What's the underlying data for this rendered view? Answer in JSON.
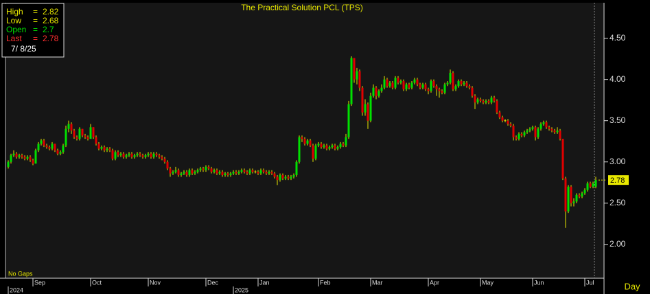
{
  "chart_data": {
    "type": "candlestick",
    "title": "The Practical Solution PCL (TPS)",
    "info": {
      "labels": [
        "High",
        "Low",
        "Open",
        "Last"
      ],
      "separator": "=",
      "fields": [
        1,
        2,
        0,
        3
      ],
      "colors": [
        "#e8e800",
        "#e8e800",
        "#00e000",
        "#ff3030"
      ],
      "date": "7/ 8/25"
    },
    "note": "No Gaps",
    "period": "Day",
    "up_color": "#00e000",
    "down_color": "#e00000",
    "wick_color": "#e8e800",
    "ylim": [
      1.59,
      4.93
    ],
    "yticks": [
      {
        "value": 2,
        "label": "2.00"
      },
      {
        "value": 2.5,
        "label": "2.50"
      },
      {
        "value": 3,
        "label": "3.00"
      },
      {
        "value": 3.5,
        "label": "3.50"
      },
      {
        "value": 4,
        "label": "4.00"
      },
      {
        "value": 4.5,
        "label": "4.50"
      }
    ],
    "xlim": [
      -1,
      217
    ],
    "xticks": [
      {
        "value": 9,
        "label": "Sep"
      },
      {
        "value": 30,
        "label": "Oct"
      },
      {
        "value": 51,
        "label": "Nov"
      },
      {
        "value": 72,
        "label": "Dec"
      },
      {
        "value": 91,
        "label": "Jan"
      },
      {
        "value": 113,
        "label": "Feb"
      },
      {
        "value": 132,
        "label": "Mar"
      },
      {
        "value": 153,
        "label": "Apr"
      },
      {
        "value": 172,
        "label": "May"
      },
      {
        "value": 191,
        "label": "Jun"
      },
      {
        "value": 210,
        "label": "Jul"
      }
    ],
    "year_ticks": [
      {
        "value": 9,
        "label": "2024"
      },
      {
        "value": 91,
        "label": "2025"
      }
    ],
    "candles": [
      [
        2.94,
        3.02,
        2.92,
        3.0
      ],
      [
        3.0,
        3.1,
        2.98,
        3.08
      ],
      [
        3.08,
        3.14,
        3.06,
        3.1
      ],
      [
        3.1,
        3.12,
        3.04,
        3.06
      ],
      [
        3.06,
        3.1,
        3.04,
        3.08
      ],
      [
        3.08,
        3.1,
        3.04,
        3.06
      ],
      [
        3.06,
        3.08,
        3.02,
        3.04
      ],
      [
        3.04,
        3.08,
        3.02,
        3.06
      ],
      [
        3.06,
        3.08,
        3.0,
        3.02
      ],
      [
        3.02,
        3.04,
        2.96,
        2.98
      ],
      [
        2.98,
        3.16,
        2.98,
        3.14
      ],
      [
        3.14,
        3.24,
        3.12,
        3.22
      ],
      [
        3.22,
        3.28,
        3.2,
        3.26
      ],
      [
        3.26,
        3.28,
        3.18,
        3.2
      ],
      [
        3.2,
        3.22,
        3.16,
        3.18
      ],
      [
        3.18,
        3.2,
        3.14,
        3.16
      ],
      [
        3.16,
        3.24,
        3.14,
        3.22
      ],
      [
        3.22,
        3.22,
        3.12,
        3.14
      ],
      [
        3.14,
        3.16,
        3.08,
        3.1
      ],
      [
        3.1,
        3.14,
        3.08,
        3.12
      ],
      [
        3.12,
        3.22,
        3.1,
        3.2
      ],
      [
        3.2,
        3.44,
        3.18,
        3.4
      ],
      [
        3.4,
        3.5,
        3.36,
        3.46
      ],
      [
        3.46,
        3.48,
        3.34,
        3.38
      ],
      [
        3.38,
        3.4,
        3.28,
        3.3
      ],
      [
        3.3,
        3.32,
        3.26,
        3.28
      ],
      [
        3.28,
        3.42,
        3.26,
        3.4
      ],
      [
        3.4,
        3.4,
        3.3,
        3.32
      ],
      [
        3.32,
        3.34,
        3.28,
        3.3
      ],
      [
        3.3,
        3.32,
        3.26,
        3.28
      ],
      [
        3.28,
        3.46,
        3.28,
        3.42
      ],
      [
        3.42,
        3.42,
        3.28,
        3.3
      ],
      [
        3.3,
        3.32,
        3.2,
        3.22
      ],
      [
        3.22,
        3.24,
        3.14,
        3.16
      ],
      [
        3.16,
        3.2,
        3.14,
        3.18
      ],
      [
        3.18,
        3.2,
        3.12,
        3.14
      ],
      [
        3.14,
        3.18,
        3.12,
        3.16
      ],
      [
        3.16,
        3.18,
        3.12,
        3.14
      ],
      [
        3.14,
        3.16,
        3.02,
        3.04
      ],
      [
        3.04,
        3.14,
        3.02,
        3.12
      ],
      [
        3.12,
        3.14,
        3.06,
        3.08
      ],
      [
        3.08,
        3.12,
        3.06,
        3.1
      ],
      [
        3.1,
        3.12,
        3.04,
        3.06
      ],
      [
        3.06,
        3.1,
        3.04,
        3.08
      ],
      [
        3.08,
        3.12,
        3.06,
        3.1
      ],
      [
        3.1,
        3.12,
        3.04,
        3.06
      ],
      [
        3.06,
        3.1,
        3.04,
        3.08
      ],
      [
        3.08,
        3.12,
        3.06,
        3.1
      ],
      [
        3.1,
        3.12,
        3.06,
        3.08
      ],
      [
        3.08,
        3.1,
        3.04,
        3.06
      ],
      [
        3.06,
        3.1,
        3.04,
        3.08
      ],
      [
        3.08,
        3.12,
        3.06,
        3.1
      ],
      [
        3.1,
        3.12,
        3.04,
        3.06
      ],
      [
        3.06,
        3.12,
        3.04,
        3.1
      ],
      [
        3.1,
        3.12,
        3.06,
        3.08
      ],
      [
        3.08,
        3.1,
        3.04,
        3.06
      ],
      [
        3.06,
        3.08,
        3.02,
        3.04
      ],
      [
        3.04,
        3.06,
        2.98,
        3.0
      ],
      [
        3.0,
        3.02,
        2.9,
        2.92
      ],
      [
        2.92,
        2.94,
        2.82,
        2.86
      ],
      [
        2.86,
        2.9,
        2.84,
        2.88
      ],
      [
        2.88,
        2.94,
        2.86,
        2.9
      ],
      [
        2.9,
        2.92,
        2.82,
        2.84
      ],
      [
        2.84,
        2.88,
        2.82,
        2.86
      ],
      [
        2.86,
        2.9,
        2.84,
        2.88
      ],
      [
        2.88,
        2.9,
        2.82,
        2.84
      ],
      [
        2.84,
        2.92,
        2.82,
        2.9
      ],
      [
        2.9,
        2.92,
        2.84,
        2.86
      ],
      [
        2.86,
        2.9,
        2.84,
        2.88
      ],
      [
        2.88,
        2.92,
        2.86,
        2.9
      ],
      [
        2.9,
        2.94,
        2.88,
        2.92
      ],
      [
        2.92,
        2.94,
        2.88,
        2.9
      ],
      [
        2.9,
        2.96,
        2.88,
        2.94
      ],
      [
        2.94,
        2.96,
        2.9,
        2.92
      ],
      [
        2.92,
        2.94,
        2.86,
        2.88
      ],
      [
        2.88,
        2.92,
        2.86,
        2.9
      ],
      [
        2.9,
        2.92,
        2.84,
        2.86
      ],
      [
        2.86,
        2.9,
        2.84,
        2.88
      ],
      [
        2.88,
        2.9,
        2.82,
        2.84
      ],
      [
        2.84,
        2.88,
        2.82,
        2.86
      ],
      [
        2.86,
        2.88,
        2.82,
        2.84
      ],
      [
        2.84,
        2.88,
        2.82,
        2.86
      ],
      [
        2.86,
        2.9,
        2.84,
        2.88
      ],
      [
        2.88,
        2.9,
        2.84,
        2.86
      ],
      [
        2.86,
        2.9,
        2.84,
        2.88
      ],
      [
        2.88,
        2.92,
        2.86,
        2.9
      ],
      [
        2.9,
        2.92,
        2.86,
        2.88
      ],
      [
        2.88,
        2.9,
        2.84,
        2.86
      ],
      [
        2.86,
        2.92,
        2.84,
        2.9
      ],
      [
        2.9,
        2.92,
        2.86,
        2.88
      ],
      [
        2.88,
        2.9,
        2.86,
        2.88
      ],
      [
        2.88,
        2.9,
        2.84,
        2.86
      ],
      [
        2.86,
        2.92,
        2.84,
        2.9
      ],
      [
        2.9,
        2.92,
        2.86,
        2.88
      ],
      [
        2.88,
        2.9,
        2.84,
        2.86
      ],
      [
        2.86,
        2.9,
        2.84,
        2.88
      ],
      [
        2.88,
        2.9,
        2.84,
        2.86
      ],
      [
        2.86,
        2.88,
        2.8,
        2.82
      ],
      [
        2.82,
        2.84,
        2.72,
        2.78
      ],
      [
        2.78,
        2.86,
        2.76,
        2.84
      ],
      [
        2.84,
        2.86,
        2.78,
        2.8
      ],
      [
        2.8,
        2.84,
        2.78,
        2.82
      ],
      [
        2.82,
        2.84,
        2.78,
        2.8
      ],
      [
        2.8,
        2.84,
        2.78,
        2.82
      ],
      [
        2.82,
        2.86,
        2.8,
        2.84
      ],
      [
        2.84,
        3.02,
        2.82,
        3.0
      ],
      [
        3.0,
        3.32,
        2.98,
        3.3
      ],
      [
        3.3,
        3.32,
        3.24,
        3.28
      ],
      [
        3.28,
        3.3,
        3.2,
        3.22
      ],
      [
        3.22,
        3.28,
        3.2,
        3.26
      ],
      [
        3.26,
        3.28,
        3.18,
        3.2
      ],
      [
        3.2,
        3.22,
        3.0,
        3.04
      ],
      [
        3.04,
        3.22,
        3.02,
        3.2
      ],
      [
        3.2,
        3.24,
        3.18,
        3.22
      ],
      [
        3.22,
        3.24,
        3.16,
        3.18
      ],
      [
        3.18,
        3.22,
        3.16,
        3.2
      ],
      [
        3.2,
        3.22,
        3.14,
        3.16
      ],
      [
        3.16,
        3.2,
        3.14,
        3.18
      ],
      [
        3.18,
        3.22,
        3.16,
        3.2
      ],
      [
        3.2,
        3.22,
        3.14,
        3.16
      ],
      [
        3.16,
        3.2,
        3.14,
        3.18
      ],
      [
        3.18,
        3.24,
        3.16,
        3.22
      ],
      [
        3.22,
        3.24,
        3.18,
        3.2
      ],
      [
        3.2,
        3.34,
        3.18,
        3.3
      ],
      [
        3.3,
        3.74,
        3.28,
        3.7
      ],
      [
        3.7,
        4.28,
        3.68,
        4.26
      ],
      [
        4.26,
        4.26,
        3.96,
        4.0
      ],
      [
        4.0,
        4.14,
        3.94,
        4.1
      ],
      [
        4.1,
        4.12,
        3.86,
        3.9
      ],
      [
        3.9,
        3.92,
        3.56,
        3.6
      ],
      [
        3.6,
        3.76,
        3.56,
        3.7
      ],
      [
        3.7,
        3.72,
        3.4,
        3.5
      ],
      [
        3.5,
        3.84,
        3.48,
        3.8
      ],
      [
        3.8,
        3.94,
        3.78,
        3.9
      ],
      [
        3.9,
        3.92,
        3.76,
        3.8
      ],
      [
        3.8,
        3.88,
        3.78,
        3.86
      ],
      [
        3.86,
        3.94,
        3.84,
        3.9
      ],
      [
        3.9,
        4.04,
        3.88,
        4.0
      ],
      [
        4.0,
        4.02,
        3.9,
        3.92
      ],
      [
        3.92,
        3.98,
        3.9,
        3.96
      ],
      [
        3.96,
        3.98,
        3.88,
        3.9
      ],
      [
        3.9,
        4.04,
        3.88,
        4.02
      ],
      [
        4.02,
        4.04,
        3.94,
        3.96
      ],
      [
        3.96,
        4.0,
        3.94,
        3.98
      ],
      [
        3.98,
        4.0,
        3.86,
        3.88
      ],
      [
        3.88,
        3.96,
        3.86,
        3.94
      ],
      [
        3.94,
        3.96,
        3.88,
        3.9
      ],
      [
        3.9,
        3.98,
        3.88,
        3.96
      ],
      [
        3.96,
        4.02,
        3.94,
        4.0
      ],
      [
        4.0,
        4.02,
        3.92,
        3.94
      ],
      [
        3.94,
        3.96,
        3.88,
        3.9
      ],
      [
        3.9,
        3.96,
        3.88,
        3.94
      ],
      [
        3.94,
        3.96,
        3.86,
        3.88
      ],
      [
        3.88,
        3.9,
        3.82,
        3.86
      ],
      [
        3.86,
        4.0,
        3.84,
        3.98
      ],
      [
        3.98,
        4.0,
        3.9,
        3.92
      ],
      [
        3.92,
        3.94,
        3.8,
        3.88
      ],
      [
        3.88,
        3.9,
        3.78,
        3.86
      ],
      [
        3.86,
        3.88,
        3.82,
        3.84
      ],
      [
        3.84,
        3.96,
        3.82,
        3.94
      ],
      [
        3.94,
        3.98,
        3.92,
        3.96
      ],
      [
        3.96,
        4.12,
        3.94,
        4.08
      ],
      [
        4.08,
        4.1,
        3.86,
        3.88
      ],
      [
        3.88,
        3.94,
        3.86,
        3.92
      ],
      [
        3.92,
        4.0,
        3.9,
        3.98
      ],
      [
        3.98,
        4.0,
        3.92,
        3.94
      ],
      [
        3.94,
        3.98,
        3.92,
        3.96
      ],
      [
        3.96,
        3.98,
        3.9,
        3.92
      ],
      [
        3.92,
        3.94,
        3.88,
        3.9
      ],
      [
        3.9,
        3.92,
        3.78,
        3.8
      ],
      [
        3.8,
        3.82,
        3.64,
        3.72
      ],
      [
        3.72,
        3.78,
        3.7,
        3.76
      ],
      [
        3.76,
        3.78,
        3.72,
        3.74
      ],
      [
        3.74,
        3.76,
        3.7,
        3.72
      ],
      [
        3.72,
        3.76,
        3.7,
        3.74
      ],
      [
        3.74,
        3.76,
        3.7,
        3.72
      ],
      [
        3.72,
        3.8,
        3.7,
        3.78
      ],
      [
        3.78,
        3.8,
        3.72,
        3.74
      ],
      [
        3.74,
        3.76,
        3.58,
        3.6
      ],
      [
        3.6,
        3.62,
        3.52,
        3.54
      ],
      [
        3.54,
        3.56,
        3.48,
        3.5
      ],
      [
        3.5,
        3.52,
        3.48,
        3.5
      ],
      [
        3.5,
        3.52,
        3.44,
        3.46
      ],
      [
        3.46,
        3.48,
        3.42,
        3.44
      ],
      [
        3.44,
        3.46,
        3.26,
        3.3
      ],
      [
        3.3,
        3.32,
        3.26,
        3.28
      ],
      [
        3.28,
        3.36,
        3.26,
        3.34
      ],
      [
        3.34,
        3.36,
        3.3,
        3.32
      ],
      [
        3.32,
        3.38,
        3.3,
        3.36
      ],
      [
        3.36,
        3.4,
        3.34,
        3.38
      ],
      [
        3.38,
        3.42,
        3.36,
        3.4
      ],
      [
        3.4,
        3.44,
        3.38,
        3.42
      ],
      [
        3.42,
        3.44,
        3.26,
        3.3
      ],
      [
        3.3,
        3.42,
        3.28,
        3.4
      ],
      [
        3.4,
        3.48,
        3.38,
        3.46
      ],
      [
        3.46,
        3.5,
        3.44,
        3.48
      ],
      [
        3.48,
        3.5,
        3.4,
        3.42
      ],
      [
        3.42,
        3.44,
        3.38,
        3.4
      ],
      [
        3.4,
        3.42,
        3.36,
        3.38
      ],
      [
        3.38,
        3.4,
        3.34,
        3.36
      ],
      [
        3.36,
        3.42,
        3.34,
        3.38
      ],
      [
        3.38,
        3.4,
        3.26,
        3.28
      ],
      [
        3.28,
        3.28,
        2.78,
        2.8
      ],
      [
        2.8,
        2.82,
        2.2,
        2.4
      ],
      [
        2.4,
        2.72,
        2.38,
        2.7
      ],
      [
        2.7,
        2.72,
        2.46,
        2.5
      ],
      [
        2.5,
        2.56,
        2.46,
        2.52
      ],
      [
        2.52,
        2.62,
        2.5,
        2.6
      ],
      [
        2.6,
        2.62,
        2.56,
        2.58
      ],
      [
        2.58,
        2.64,
        2.56,
        2.62
      ],
      [
        2.62,
        2.68,
        2.6,
        2.66
      ],
      [
        2.66,
        2.76,
        2.64,
        2.74
      ],
      [
        2.74,
        2.76,
        2.68,
        2.7
      ],
      [
        2.7,
        2.76,
        2.68,
        2.74
      ],
      [
        2.7,
        2.82,
        2.68,
        2.78
      ]
    ]
  }
}
